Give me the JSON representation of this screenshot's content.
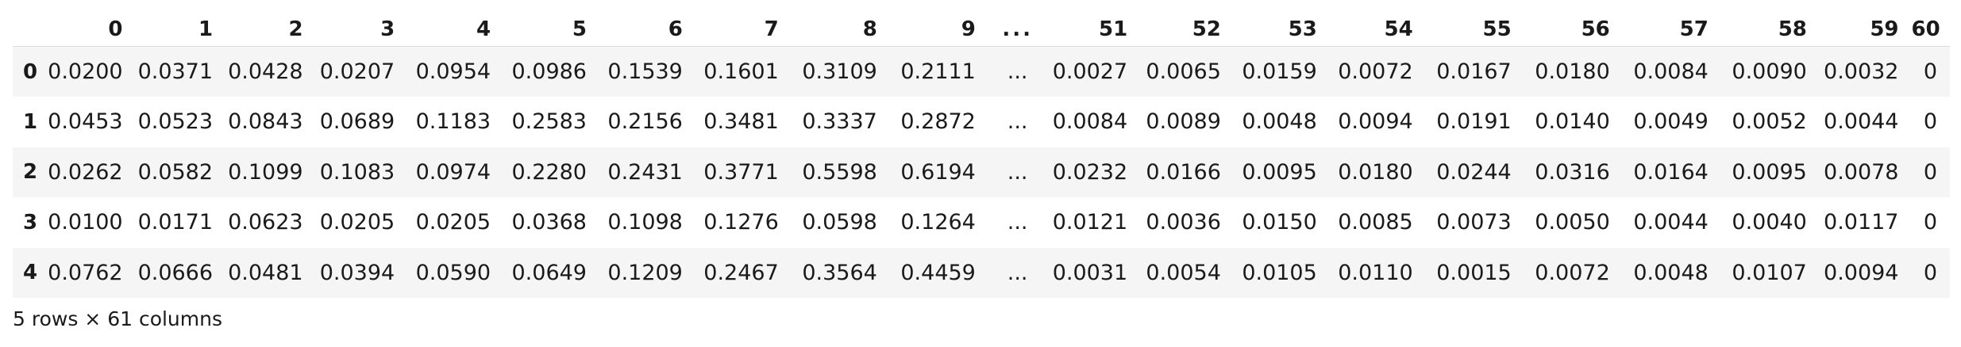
{
  "table": {
    "index_header": "",
    "columns": [
      "0",
      "1",
      "2",
      "3",
      "4",
      "5",
      "6",
      "7",
      "8",
      "9",
      "...",
      "51",
      "52",
      "53",
      "54",
      "55",
      "56",
      "57",
      "58",
      "59",
      "60"
    ],
    "rows": [
      {
        "index": "0",
        "cells": [
          "0.0200",
          "0.0371",
          "0.0428",
          "0.0207",
          "0.0954",
          "0.0986",
          "0.1539",
          "0.1601",
          "0.3109",
          "0.2111",
          "...",
          "0.0027",
          "0.0065",
          "0.0159",
          "0.0072",
          "0.0167",
          "0.0180",
          "0.0084",
          "0.0090",
          "0.0032",
          "0"
        ]
      },
      {
        "index": "1",
        "cells": [
          "0.0453",
          "0.0523",
          "0.0843",
          "0.0689",
          "0.1183",
          "0.2583",
          "0.2156",
          "0.3481",
          "0.3337",
          "0.2872",
          "...",
          "0.0084",
          "0.0089",
          "0.0048",
          "0.0094",
          "0.0191",
          "0.0140",
          "0.0049",
          "0.0052",
          "0.0044",
          "0"
        ]
      },
      {
        "index": "2",
        "cells": [
          "0.0262",
          "0.0582",
          "0.1099",
          "0.1083",
          "0.0974",
          "0.2280",
          "0.2431",
          "0.3771",
          "0.5598",
          "0.6194",
          "...",
          "0.0232",
          "0.0166",
          "0.0095",
          "0.0180",
          "0.0244",
          "0.0316",
          "0.0164",
          "0.0095",
          "0.0078",
          "0"
        ]
      },
      {
        "index": "3",
        "cells": [
          "0.0100",
          "0.0171",
          "0.0623",
          "0.0205",
          "0.0205",
          "0.0368",
          "0.1098",
          "0.1276",
          "0.0598",
          "0.1264",
          "...",
          "0.0121",
          "0.0036",
          "0.0150",
          "0.0085",
          "0.0073",
          "0.0050",
          "0.0044",
          "0.0040",
          "0.0117",
          "0"
        ]
      },
      {
        "index": "4",
        "cells": [
          "0.0762",
          "0.0666",
          "0.0481",
          "0.0394",
          "0.0590",
          "0.0649",
          "0.1209",
          "0.2467",
          "0.3564",
          "0.4459",
          "...",
          "0.0031",
          "0.0054",
          "0.0105",
          "0.0110",
          "0.0015",
          "0.0072",
          "0.0048",
          "0.0107",
          "0.0094",
          "0"
        ]
      }
    ]
  },
  "footer": {
    "shape_text": "5 rows × 61 columns"
  }
}
